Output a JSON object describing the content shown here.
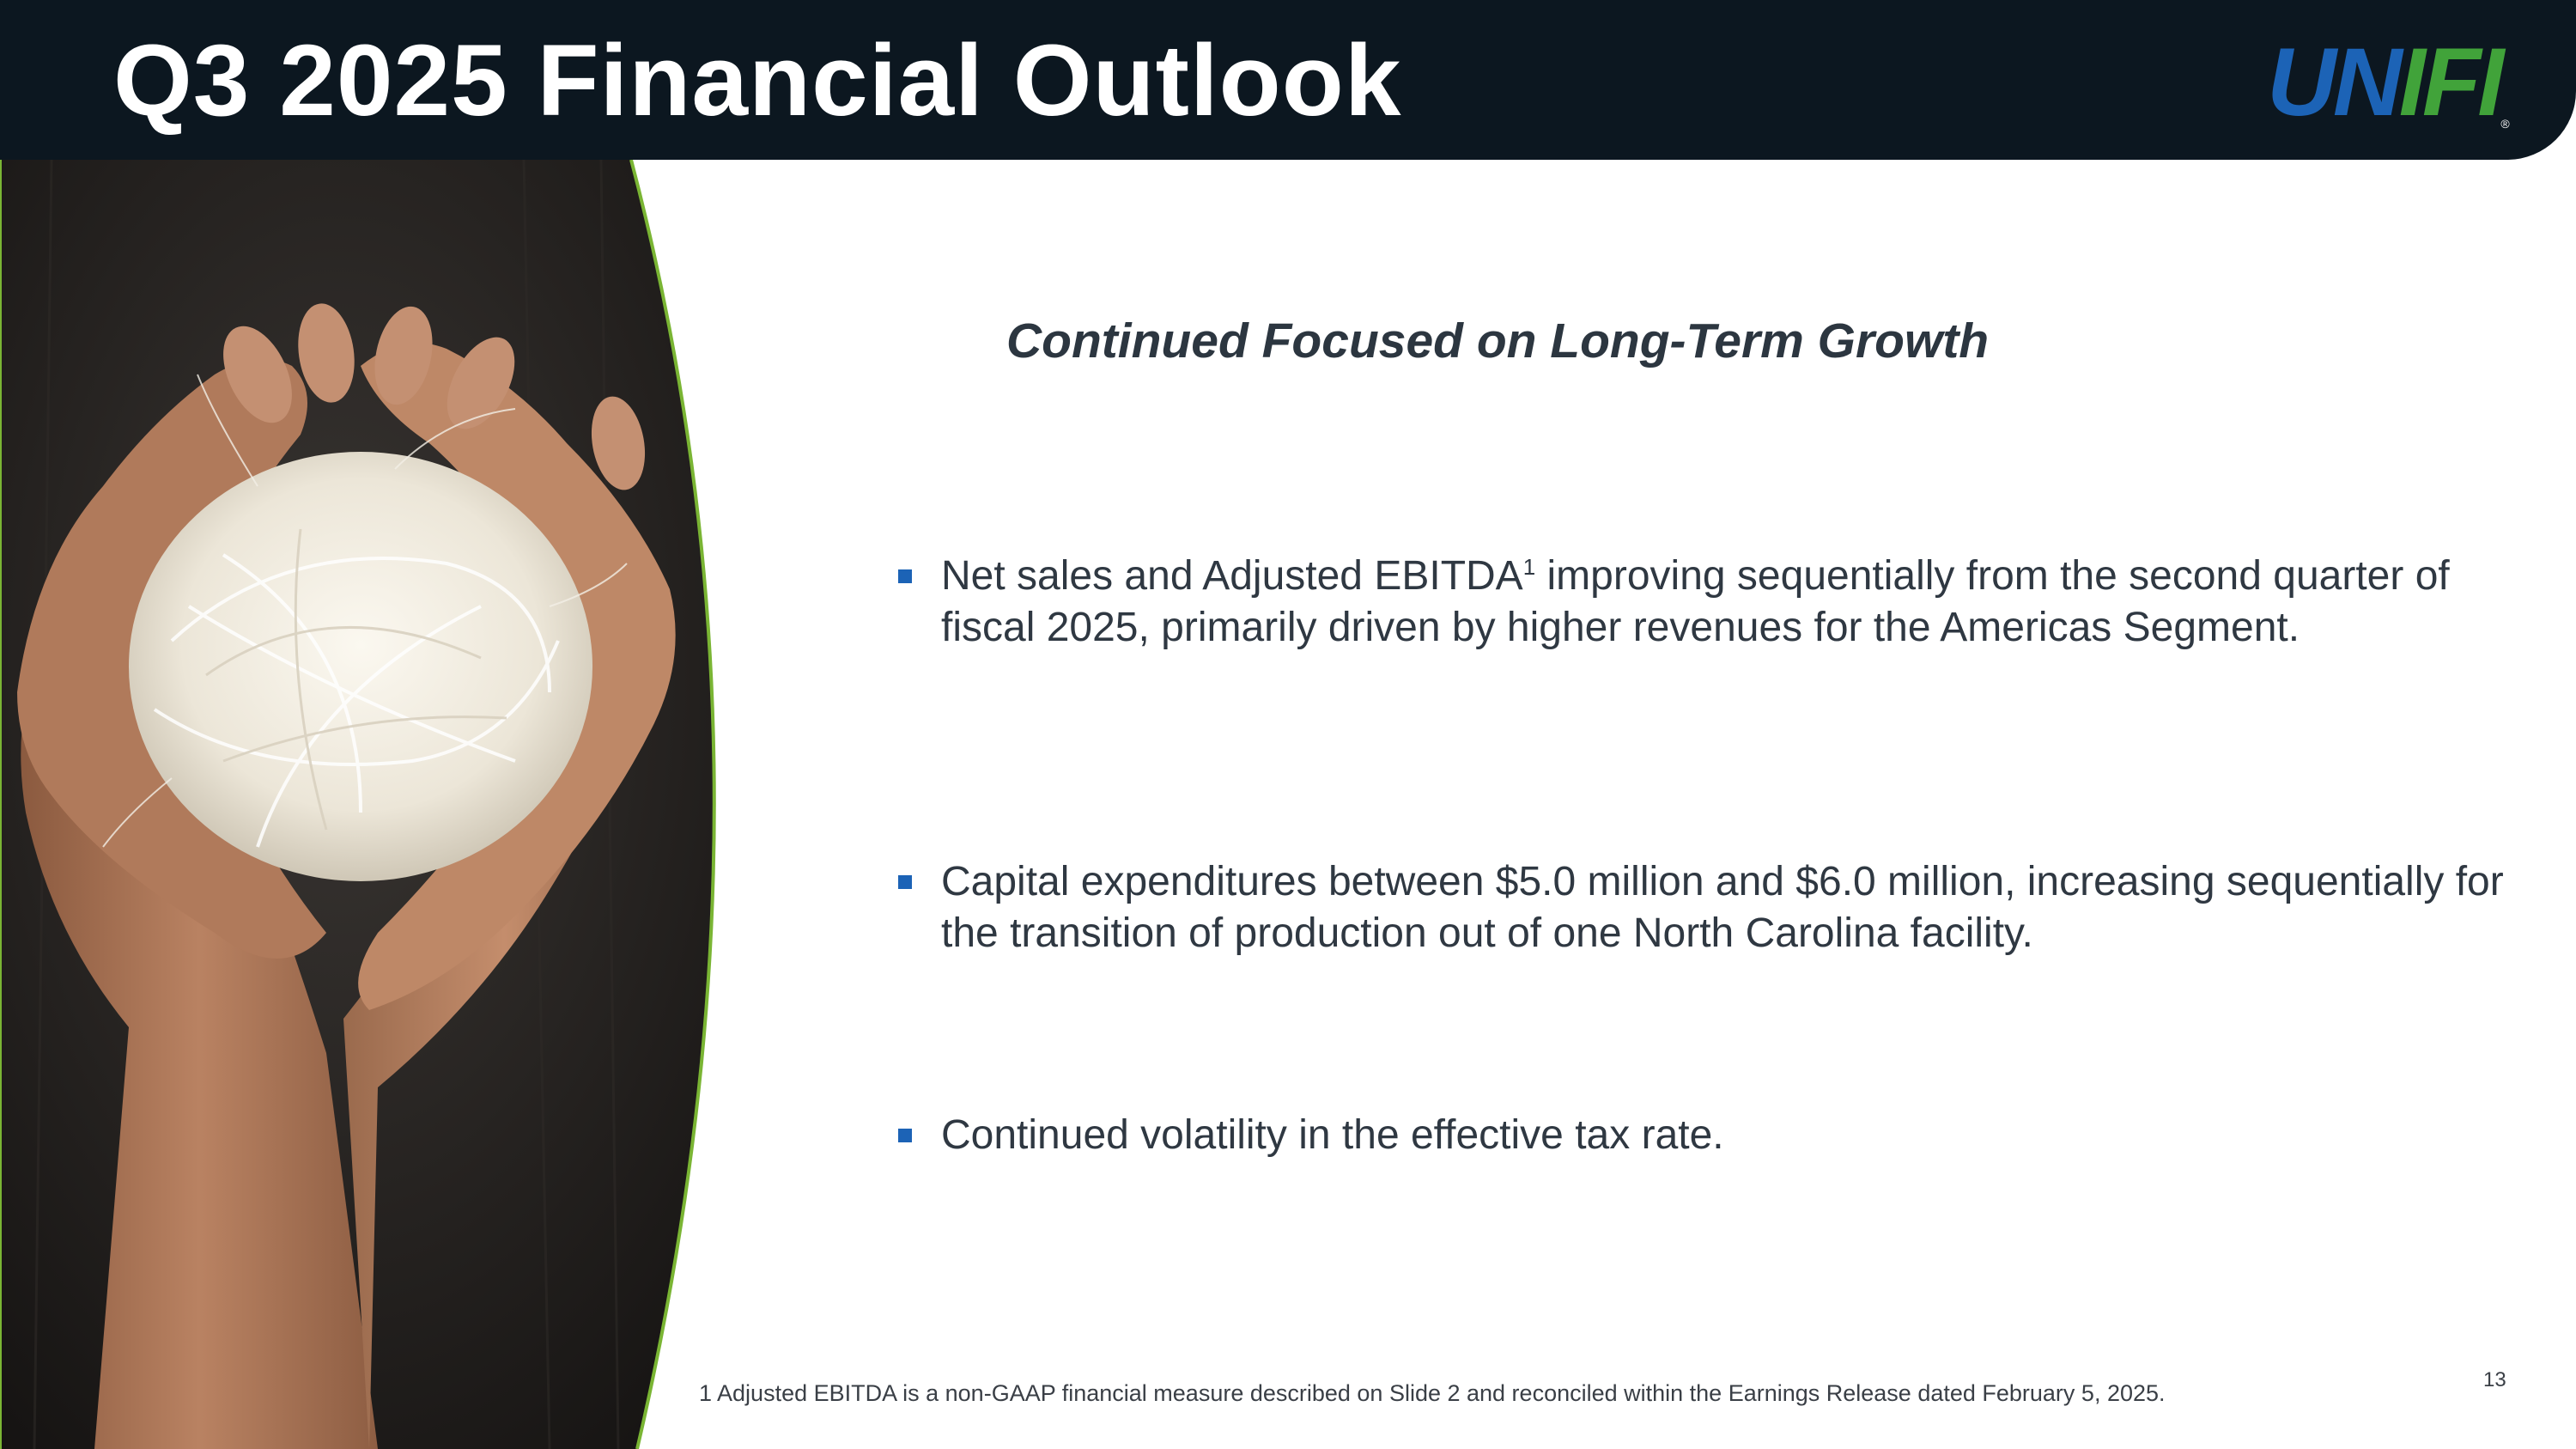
{
  "header": {
    "title": "Q3 2025 Financial Outlook",
    "logo": {
      "part1": "UN",
      "part2": "IFI",
      "mark": "®",
      "colors": {
        "blue": "#1c63b6",
        "green": "#41a33a"
      }
    }
  },
  "photo": {
    "subject": "hands-holding-white-fiber",
    "accent_border_color": "#7ab534"
  },
  "main": {
    "subtitle": "Continued Focused on Long-Term Growth",
    "bullets": [
      {
        "before_sup": "Net sales and Adjusted EBITDA",
        "sup": "1",
        "after_sup": " improving sequentially from the second quarter of fiscal 2025, primarily driven by higher revenues for the Americas Segment."
      },
      {
        "text": "Capital expenditures between $5.0 million and $6.0 million, increasing sequentially for the transition of production out of one North Carolina facility."
      },
      {
        "text": "Continued volatility in the effective tax rate."
      }
    ],
    "bullet_color": "#1c63b6"
  },
  "footer": {
    "footnote": "1  Adjusted EBITDA is a non-GAAP financial measure described on Slide 2 and reconciled within the Earnings Release dated February 5, 2025.",
    "page_number": "13"
  }
}
